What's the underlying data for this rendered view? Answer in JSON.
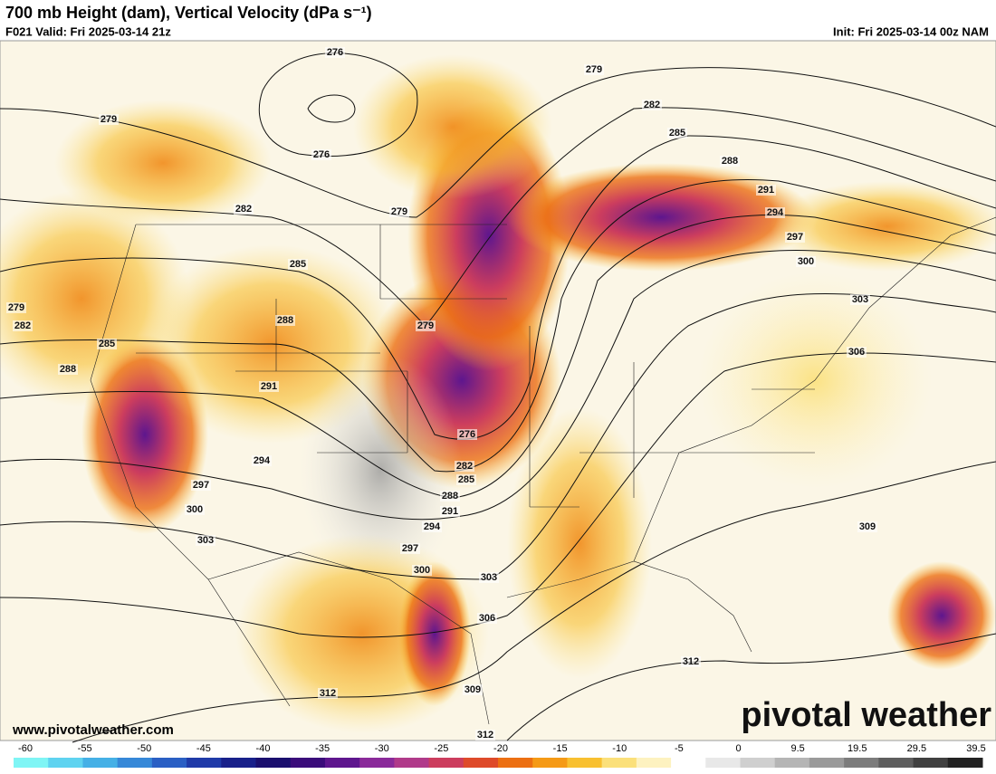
{
  "header": {
    "title": "700 mb Height (dam), Vertical Velocity (dPa s⁻¹)",
    "valid": "F021 Valid: Fri 2025-03-14 21z",
    "init": "Init: Fri 2025-03-14 00z NAM"
  },
  "map": {
    "contour_labels": [
      "276",
      "276",
      "279",
      "279",
      "282",
      "285",
      "288",
      "291",
      "294",
      "297",
      "300",
      "303",
      "306",
      "309",
      "312",
      "312",
      "309",
      "312",
      "306",
      "303",
      "300",
      "297",
      "294",
      "291",
      "288",
      "285",
      "282",
      "276",
      "279",
      "279",
      "282",
      "285",
      "288",
      "291",
      "294",
      "297",
      "300",
      "303",
      "288",
      "285",
      "282",
      "279"
    ]
  },
  "footer": {
    "website": "www.pivotalweather.com",
    "logo": "pivotal weather"
  },
  "colorbar": {
    "ticks": [
      -60,
      -55,
      -50,
      -45,
      -40,
      -35,
      -30,
      -25,
      -20,
      -15,
      -10,
      -5,
      0,
      9.5,
      19.5,
      29.5,
      39.5
    ],
    "colors": [
      "#7ff5f5",
      "#5fd3f0",
      "#45b0e6",
      "#3688d8",
      "#2a5fc4",
      "#1f3aa8",
      "#18208a",
      "#1a0f6e",
      "#3a0c7a",
      "#5e168e",
      "#8a2a9a",
      "#b03a8a",
      "#cc3d5e",
      "#de4a2a",
      "#ec6f12",
      "#f59a16",
      "#f8c030",
      "#fbe07a",
      "#fdf2c0",
      "#ffffff",
      "#e8e8e8",
      "#cfcfcf",
      "#b5b5b5",
      "#9a9a9a",
      "#7c7c7c",
      "#5e5e5e",
      "#404040",
      "#222222"
    ]
  }
}
